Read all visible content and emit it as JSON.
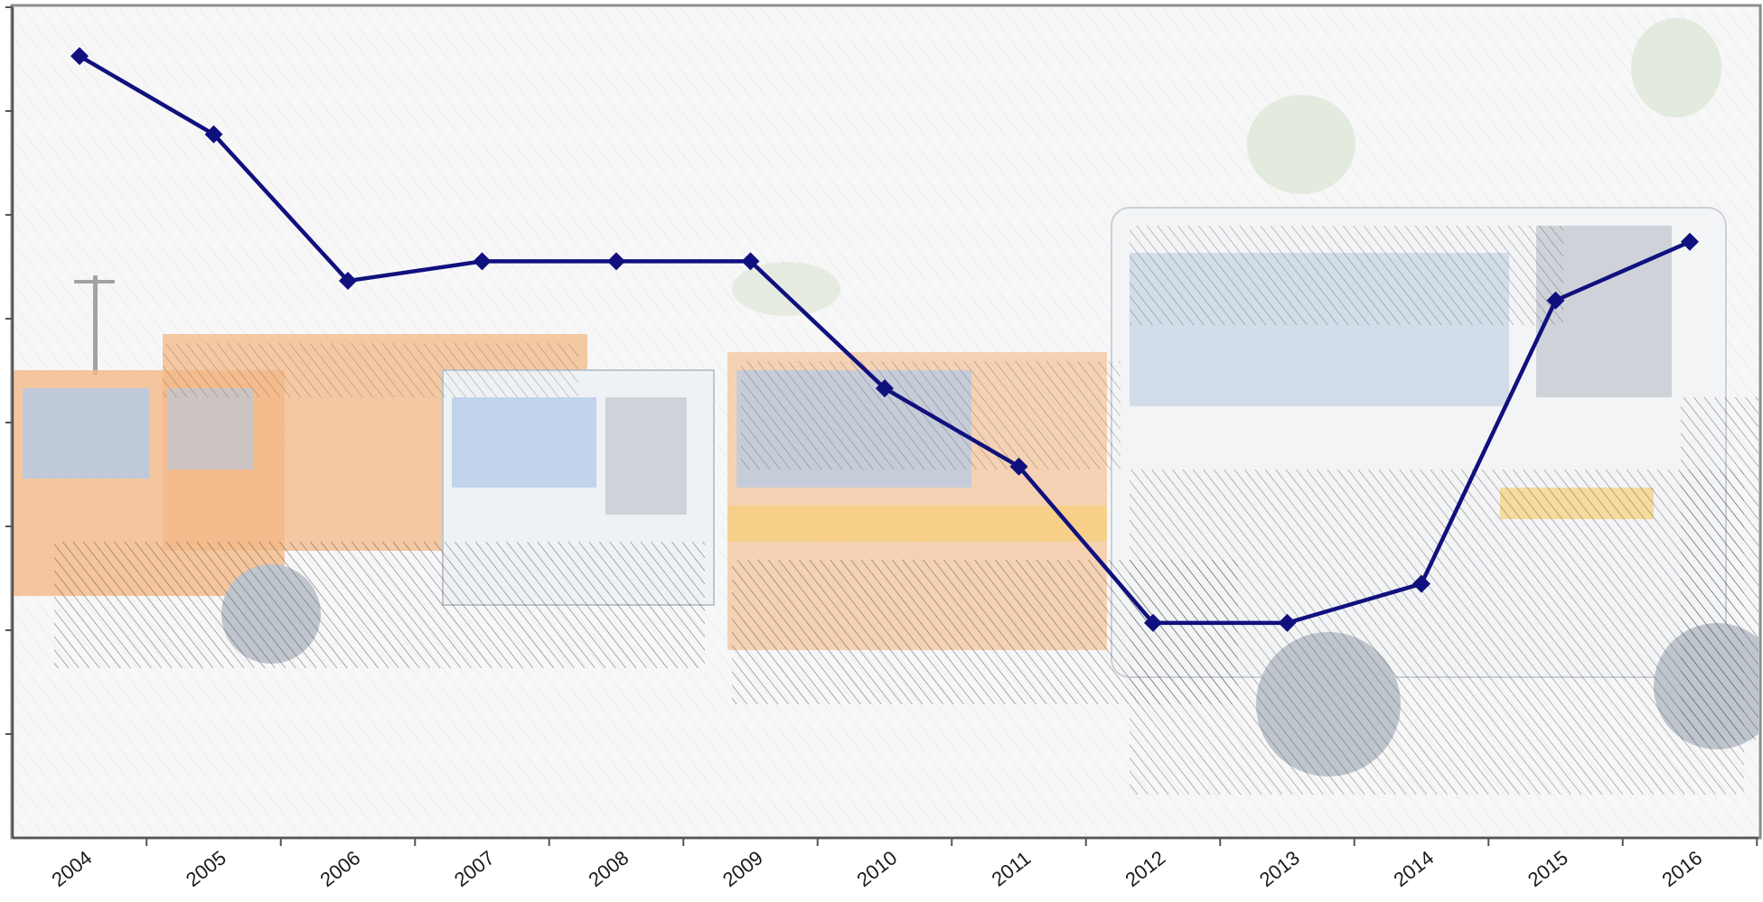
{
  "chart_data": {
    "type": "line",
    "title": "",
    "xlabel": "",
    "ylabel": "",
    "categories": [
      "2004",
      "2005",
      "2006",
      "2007",
      "2008",
      "2009",
      "2010",
      "2011",
      "2012",
      "2013",
      "2014",
      "2015",
      "2016"
    ],
    "series": [
      {
        "values": [
          7.5,
          6.7,
          5.2,
          5.4,
          5.4,
          5.4,
          4.1,
          3.3,
          1.7,
          1.7,
          2.1,
          5.0,
          5.6
        ]
      }
    ],
    "ylim": [
      -0.5,
      8.0
    ],
    "y_tick_count": 8,
    "y_tick_labels_shown": false,
    "grid": false,
    "legend": "none",
    "background_photo": "garbage-trucks",
    "colors": {
      "line": "#10107e",
      "marker": "#10107e",
      "axis": "#555555",
      "frame": "#8c8c8c",
      "photo_orange": "#f2b27a",
      "photo_gray": "#b9bfc8",
      "photo_blue": "#aac4e6",
      "hatch": "#2b2b2b"
    }
  }
}
